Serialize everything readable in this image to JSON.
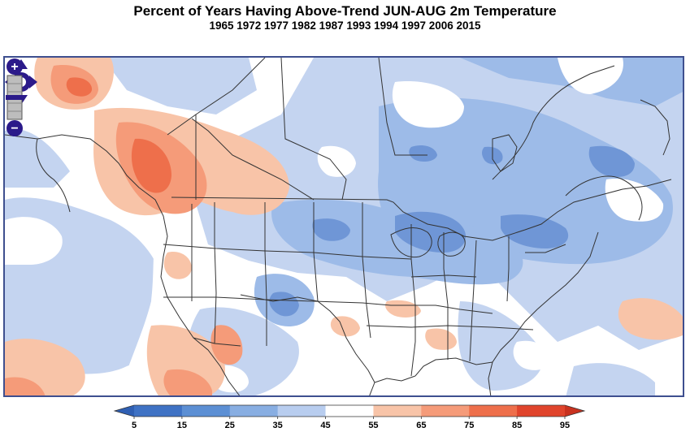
{
  "title": "Percent of Years Having Above-Trend JUN-AUG 2m Temperature",
  "subtitle": "1965 1972 1977 1982 1987 1993 1994 1997 2006 2015",
  "map": {
    "region": "North America",
    "controls": {
      "pan_label": "pan",
      "zoom_in_label": "+",
      "zoom_out_label": "−"
    }
  },
  "colorbar": {
    "ticks": [
      "5",
      "15",
      "25",
      "35",
      "45",
      "55",
      "65",
      "75",
      "85",
      "95"
    ],
    "colors": [
      "#3f72c4",
      "#5c8fd4",
      "#88aee2",
      "#b8cdef",
      "#ffffff",
      "#f8c4a8",
      "#f59b79",
      "#ee6f4b",
      "#e0442c"
    ],
    "low_arrow_color": "#2f5fb3",
    "high_arrow_color": "#c8321f"
  },
  "palette": {
    "blue_light": "#c4d4f0",
    "blue_mid": "#9dbbe8",
    "blue_dark": "#6f96d6",
    "blue_darkest": "#4f7ec8",
    "orange_light": "#f8c4a8",
    "orange_mid": "#f59b79",
    "orange_dark": "#ee6f4b",
    "border_line": "#333333",
    "frame": "#3e4f8f",
    "control": "#2b1a8a"
  }
}
